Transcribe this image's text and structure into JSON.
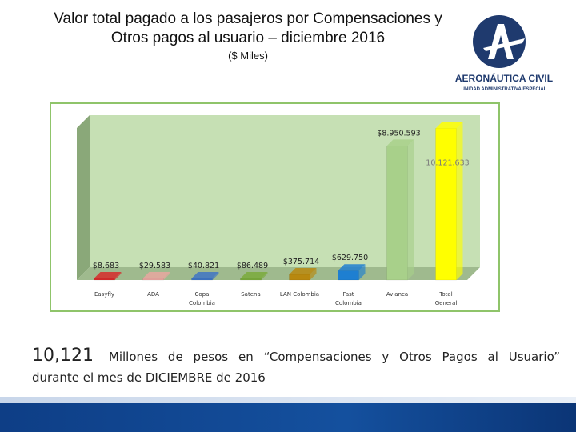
{
  "header": {
    "title_line1": "Valor total pagado a los pasajeros  por Compensaciones y",
    "title_line2": "Otros pagos al usuario – diciembre 2016",
    "units": "($ Miles)"
  },
  "logo": {
    "letter": "A",
    "name": "AERONÁUTICA CIVIL",
    "tagline": "UNIDAD ADMINISTRATIVA ESPECIAL",
    "color": "#1f3a6e"
  },
  "chart_data": {
    "type": "bar",
    "categories": [
      "Easyfly",
      "ADA",
      "Copa Colombia",
      "Satena",
      "LAN Colombia",
      "Fast Colombia",
      "Avianca",
      "Total General"
    ],
    "values": [
      8683,
      29583,
      40821,
      86489,
      375714,
      629750,
      8950593,
      10121633
    ],
    "data_labels": [
      "$8.683",
      "$29.583",
      "$40.821",
      "$86.489",
      "$375.714",
      "$629.750",
      "$8.950.593",
      "10.121.633"
    ],
    "colors": [
      "#d62b2b",
      "#e8a7a0",
      "#3f74c4",
      "#7aaa3c",
      "#b8880f",
      "#1e7fd1",
      "#a8d08a",
      "#ffff00"
    ],
    "ylim": [
      0,
      11000000
    ],
    "grid": false,
    "legend": "none",
    "background": "#c6e0b4"
  },
  "summary": {
    "big_number": "10,121",
    "line1_rest": "Millones de pesos en “Compensaciones y Otros Pagos al Usuario”",
    "line2": "durante el mes de  DICIEMBRE de 2016"
  },
  "theme": {
    "band_color": "#14509e"
  }
}
